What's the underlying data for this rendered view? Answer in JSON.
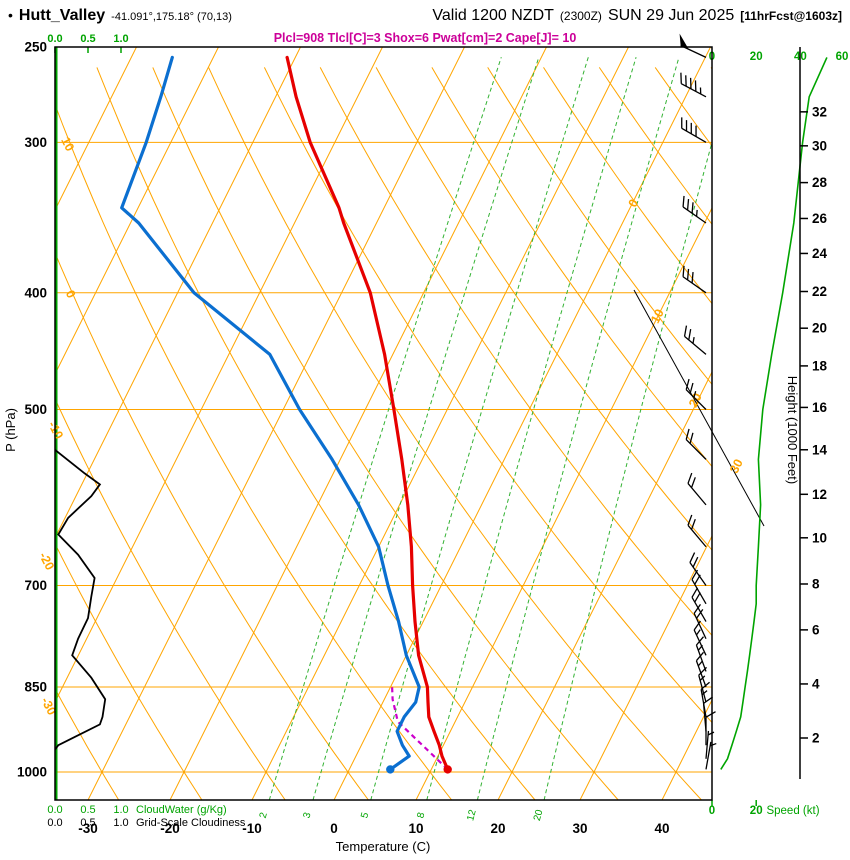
{
  "title": {
    "bullet": "•",
    "station": "Hutt_Valley",
    "coords": "-41.091°,175.18° (70,13)",
    "valid": "Valid 1200 NZDT",
    "valid_z": "(2300Z)",
    "valid_date": "SUN 29 Jun 2025",
    "fcst": "[11hrFcst@1603z]",
    "indices": "Plcl=908 Tlcl[C]=3 Shox=6 Pwat[cm]=2 Cape[J]= 10"
  },
  "axes": {
    "pressure_label": "P (hPa)",
    "temperature_label": "Temperature (C)",
    "height_label": "Height (1000 Feet)",
    "speed_label": "Speed (kt)",
    "cloudwater_label": "CloudWater (g/Kg)",
    "cloudiness_label": "Grid-Scale Cloudiness"
  },
  "colors": {
    "grid_orange": "#FFA500",
    "mixing_green": "#33B233",
    "label_green": "#00A400",
    "temperature_red": "#E60000",
    "dewpoint_blue": "#0B6FD0",
    "parcel_magenta": "#CC00CC",
    "indices_magenta": "#CC0099",
    "frame_black": "#000000"
  },
  "chart_data": {
    "type": "line",
    "variant": "skew-t log-p atmospheric sounding",
    "pressure_ticks_hpa": [
      250,
      300,
      400,
      500,
      700,
      850,
      1000
    ],
    "temperature_ticks_c": [
      -30,
      -20,
      -10,
      0,
      10,
      20,
      30,
      40
    ],
    "height_ticks_kft": [
      2,
      4,
      6,
      8,
      10,
      12,
      14,
      16,
      18,
      20,
      22,
      24,
      26,
      28,
      30,
      32
    ],
    "speed_ticks_top_kt": [
      0,
      20,
      40,
      60
    ],
    "speed_ticks_bottom_kt": [
      0,
      20
    ],
    "cloud_scale_ticks": [
      "0.0",
      "0.5",
      "1.0"
    ],
    "isotherm_labels_right_c": [
      0,
      10,
      20,
      30
    ],
    "dry_adiabat_labels_c": [
      10,
      0,
      -10,
      -20,
      -30
    ],
    "mixing_ratio_lines_gkg": [
      2,
      3,
      5,
      8,
      12,
      20
    ],
    "isotherm_range_c": [
      -80,
      40
    ],
    "dry_adiabat_range_c": [
      -30,
      130
    ],
    "sounding": {
      "pressure_hpa": [
        995,
        970,
        950,
        925,
        900,
        875,
        850,
        800,
        750,
        700,
        650,
        600,
        550,
        500,
        450,
        400,
        350,
        340,
        300,
        275,
        255
      ],
      "temperature_c": [
        12,
        10.5,
        9.5,
        8,
        6.5,
        5.5,
        4.5,
        1.5,
        -1,
        -3.5,
        -6,
        -9,
        -12.5,
        -16.5,
        -21,
        -26.5,
        -34,
        -35.5,
        -43,
        -47.5,
        -51
      ],
      "dewpoint_c": [
        5,
        6.5,
        5,
        3.5,
        3.5,
        4,
        3.5,
        0,
        -3,
        -6.5,
        -10,
        -15,
        -21,
        -28,
        -35,
        -48,
        -59,
        -62,
        -63,
        -64,
        -65
      ]
    },
    "surface": {
      "temperature_c": 12,
      "dewpoint_c": 5,
      "pressure_hpa": 995
    },
    "parcel_path": {
      "pressure_hpa": [
        995,
        908,
        870,
        850
      ],
      "temperature_c": [
        12,
        3,
        1,
        0.2
      ]
    },
    "wind_profile": {
      "pressure_hpa": [
        995,
        975,
        950,
        925,
        900,
        875,
        850,
        825,
        800,
        775,
        750,
        725,
        700,
        650,
        600,
        550,
        500,
        450,
        400,
        350,
        300,
        275,
        255
      ],
      "direction_deg": [
        10,
        5,
        360,
        355,
        350,
        345,
        340,
        340,
        335,
        335,
        330,
        330,
        325,
        320,
        320,
        315,
        315,
        310,
        305,
        305,
        300,
        298,
        295
      ],
      "speed_kt": [
        4,
        7,
        9,
        11,
        13,
        14,
        15,
        16,
        17,
        18,
        19,
        20,
        20,
        21,
        22,
        21,
        23,
        27,
        32,
        37,
        41,
        44,
        52
      ]
    },
    "cloudiness_profile": {
      "pressure_hpa": [
        540,
        565,
        577,
        590,
        615,
        635,
        660,
        690,
        715,
        745,
        775,
        800,
        835,
        870,
        900,
        913,
        935,
        950,
        958
      ],
      "fraction": [
        0,
        0.45,
        0.68,
        0.55,
        0.2,
        0.05,
        0.35,
        0.6,
        0.55,
        0.5,
        0.35,
        0.26,
        0.55,
        0.76,
        0.72,
        0.68,
        0.3,
        0.05,
        0
      ]
    },
    "cloudwater_profile": {
      "note_value": 0
    }
  }
}
